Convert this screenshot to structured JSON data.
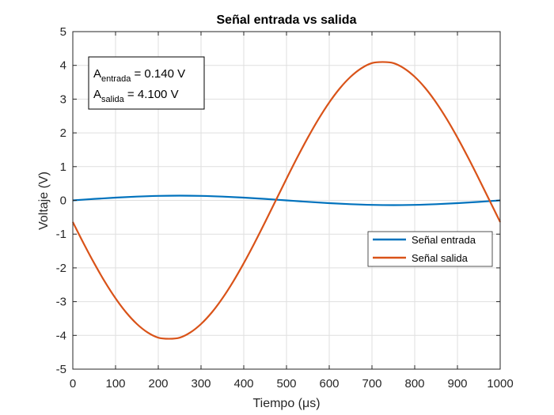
{
  "chart_data": {
    "type": "line",
    "title": "Señal entrada vs salida",
    "xlabel": "Tiempo (μs)",
    "ylabel": "Voltaje (V)",
    "xlim": [
      0,
      1000
    ],
    "ylim": [
      -5,
      5
    ],
    "xticks": [
      0,
      100,
      200,
      300,
      400,
      500,
      600,
      700,
      800,
      900,
      1000
    ],
    "yticks": [
      -5,
      -4,
      -3,
      -2,
      -1,
      0,
      1,
      2,
      3,
      4,
      5
    ],
    "grid": true,
    "legend_position": "right",
    "series": [
      {
        "name": "Señal entrada",
        "color": "#0072BD",
        "x": [
          0,
          50,
          100,
          150,
          200,
          250,
          300,
          350,
          400,
          450,
          500,
          550,
          600,
          650,
          700,
          750,
          800,
          850,
          900,
          950,
          1000
        ],
        "y": [
          0,
          0.043,
          0.082,
          0.113,
          0.133,
          0.14,
          0.133,
          0.113,
          0.082,
          0.043,
          0,
          -0.043,
          -0.082,
          -0.113,
          -0.133,
          -0.14,
          -0.133,
          -0.113,
          -0.082,
          -0.043,
          0
        ]
      },
      {
        "name": "Señal salida",
        "color": "#D95319",
        "x": [
          0,
          25,
          50,
          75,
          100,
          125,
          150,
          175,
          200,
          225,
          250,
          275,
          300,
          325,
          350,
          375,
          400,
          425,
          450,
          475,
          500,
          525,
          550,
          575,
          600,
          625,
          650,
          675,
          700,
          725,
          750,
          775,
          800,
          825,
          850,
          875,
          900,
          925,
          950,
          975,
          1000
        ],
        "y": [
          -0.642,
          -1.267,
          -1.861,
          -2.411,
          -2.902,
          -3.323,
          -3.662,
          -3.913,
          -4.068,
          -4.1,
          -4.068,
          -3.913,
          -3.662,
          -3.323,
          -2.902,
          -2.411,
          -1.861,
          -1.267,
          -0.642,
          0,
          0.642,
          1.267,
          1.861,
          2.411,
          2.902,
          3.323,
          3.662,
          3.913,
          4.068,
          4.1,
          4.068,
          3.913,
          3.662,
          3.323,
          2.902,
          2.411,
          1.861,
          1.267,
          0.642,
          0,
          -0.642
        ]
      }
    ],
    "annotation": {
      "line1_main": "A",
      "line1_sub": "entrada",
      "line1_value": " = 0.140 V",
      "line2_main": "A",
      "line2_sub": "salida",
      "line2_value": "  = 4.100 V"
    }
  }
}
